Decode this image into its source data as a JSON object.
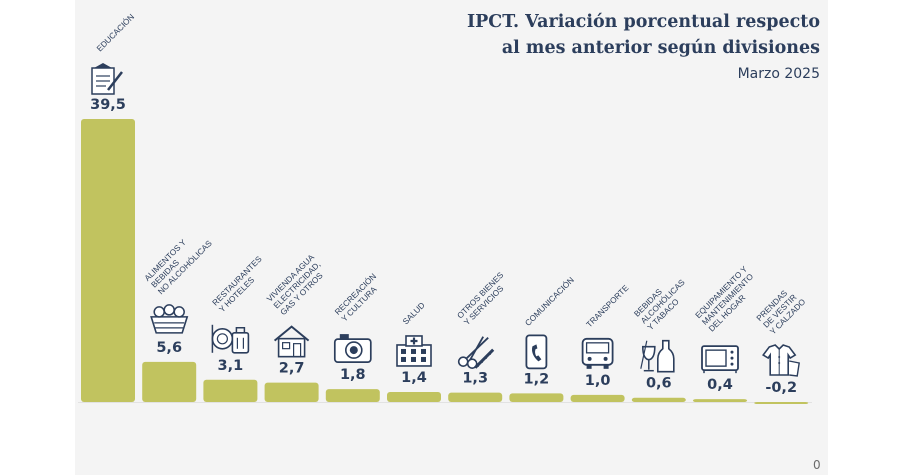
{
  "chart_data": {
    "type": "bar",
    "title": "IPCT. Variación porcentual respecto al mes anterior según divisiones",
    "title_lines": [
      "IPCT. Variación porcentual respecto",
      "al mes anterior según divisiones"
    ],
    "subtitle": "Marzo 2025",
    "ylim": [
      -0.4,
      40
    ],
    "baseline_label": "0",
    "bar_color": "#c1c35f",
    "text_color": "#2c3e5c",
    "categories": [
      {
        "label_lines": [
          "EDUCACIÓN"
        ],
        "value": 39.5,
        "display": "39,5",
        "icon": "education-icon"
      },
      {
        "label_lines": [
          "ALIMENTOS Y",
          "BEBIDAS",
          "NO ALCOHÓLICAS"
        ],
        "value": 5.6,
        "display": "5,6",
        "icon": "food-basket-icon"
      },
      {
        "label_lines": [
          "RESTAURANTES",
          "Y HOTELES"
        ],
        "value": 3.1,
        "display": "3,1",
        "icon": "restaurant-hotel-icon"
      },
      {
        "label_lines": [
          "VIVIENDA AGUA",
          "ELECTRICIDAD,",
          "GAS Y OTROS"
        ],
        "value": 2.7,
        "display": "2,7",
        "icon": "house-icon"
      },
      {
        "label_lines": [
          "RECREACIÓN",
          "Y CULTURA"
        ],
        "value": 1.8,
        "display": "1,8",
        "icon": "camera-icon"
      },
      {
        "label_lines": [
          "SALUD"
        ],
        "value": 1.4,
        "display": "1,4",
        "icon": "hospital-icon"
      },
      {
        "label_lines": [
          "OTROS BIENES",
          "Y SERVICIOS"
        ],
        "value": 1.3,
        "display": "1,3",
        "icon": "scissors-comb-icon"
      },
      {
        "label_lines": [
          "COMUNICACIÓN"
        ],
        "value": 1.2,
        "display": "1,2",
        "icon": "phone-icon"
      },
      {
        "label_lines": [
          "TRANSPORTE"
        ],
        "value": 1.0,
        "display": "1,0",
        "icon": "bus-icon"
      },
      {
        "label_lines": [
          "BEBIDAS",
          "ALCOHÓLICAS",
          "Y TABACO"
        ],
        "value": 0.6,
        "display": "0,6",
        "icon": "bottle-glass-icon"
      },
      {
        "label_lines": [
          "EQUIPAMIENTO Y",
          "MANTENIMIENTO",
          "DEL HOGAR"
        ],
        "value": 0.4,
        "display": "0,4",
        "icon": "microwave-icon"
      },
      {
        "label_lines": [
          "PRENDAS",
          "DE VESTIR",
          "Y CALZADO"
        ],
        "value": -0.2,
        "display": "-0,2",
        "icon": "clothing-icon"
      }
    ]
  }
}
